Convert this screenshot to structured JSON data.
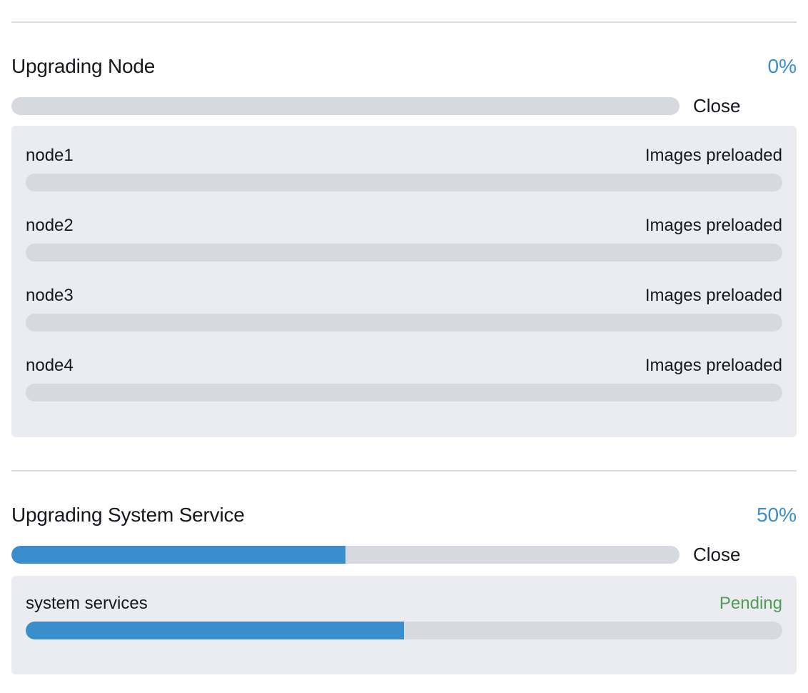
{
  "colors": {
    "accent_blue": "#3a8ecb",
    "track_gray": "#d7d9e0",
    "panel_bg": "#ebecf1",
    "status_green": "#4f9c55",
    "text_dark": "#17181d",
    "divider": "#dadce3"
  },
  "sections": [
    {
      "title": "Upgrading Node",
      "percent": "0%",
      "percent_value": 0,
      "close_label": "Close",
      "items": [
        {
          "name": "node1",
          "status": "Images preloaded",
          "status_color": "#17181d",
          "percent_value": 0
        },
        {
          "name": "node2",
          "status": "Images preloaded",
          "status_color": "#17181d",
          "percent_value": 0
        },
        {
          "name": "node3",
          "status": "Images preloaded",
          "status_color": "#17181d",
          "percent_value": 0
        },
        {
          "name": "node4",
          "status": "Images preloaded",
          "status_color": "#17181d",
          "percent_value": 0
        }
      ]
    },
    {
      "title": "Upgrading System Service",
      "percent": "50%",
      "percent_value": 50,
      "close_label": "Close",
      "items": [
        {
          "name": "system services",
          "status": "Pending",
          "status_color": "#4f9c55",
          "percent_value": 50
        }
      ]
    }
  ]
}
